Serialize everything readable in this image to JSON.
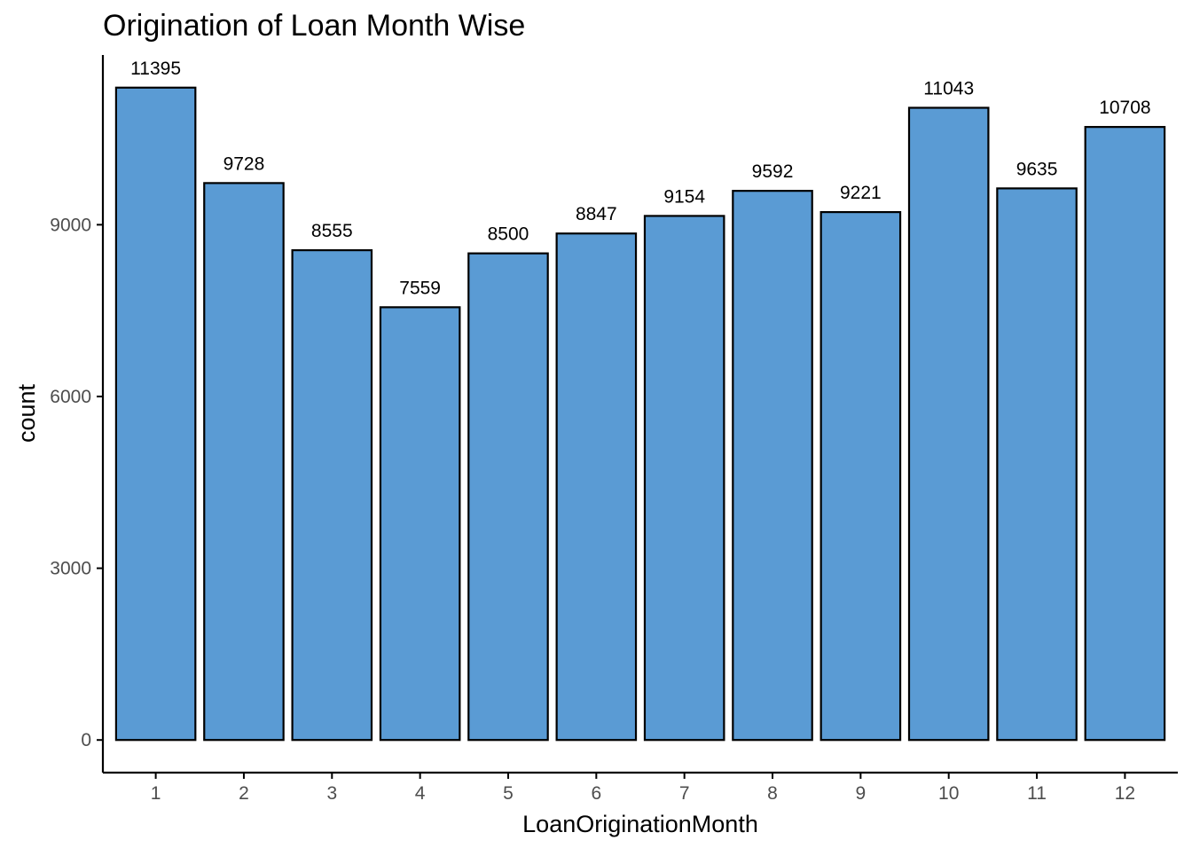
{
  "chart_data": {
    "type": "bar",
    "title": "Origination of Loan Month Wise",
    "xlabel": "LoanOriginationMonth",
    "ylabel": "count",
    "categories": [
      "1",
      "2",
      "3",
      "4",
      "5",
      "6",
      "7",
      "8",
      "9",
      "10",
      "11",
      "12"
    ],
    "values": [
      11395,
      9728,
      8555,
      7559,
      8500,
      8847,
      9154,
      9592,
      9221,
      11043,
      9635,
      10708
    ],
    "data_labels": [
      "11395",
      "9728",
      "8555",
      "7559",
      "8500",
      "8847",
      "9154",
      "9592",
      "9221",
      "11043",
      "9635",
      "10708"
    ],
    "y_ticks": [
      0,
      3000,
      6000,
      9000
    ],
    "y_tick_labels": [
      "0",
      "3000",
      "6000",
      "9000"
    ],
    "ylim": [
      -570,
      11965
    ],
    "grid": false,
    "legend": "none",
    "colors": {
      "bar_fill": "#5a9bd4",
      "bar_stroke": "#000000",
      "axis": "#000000"
    }
  }
}
